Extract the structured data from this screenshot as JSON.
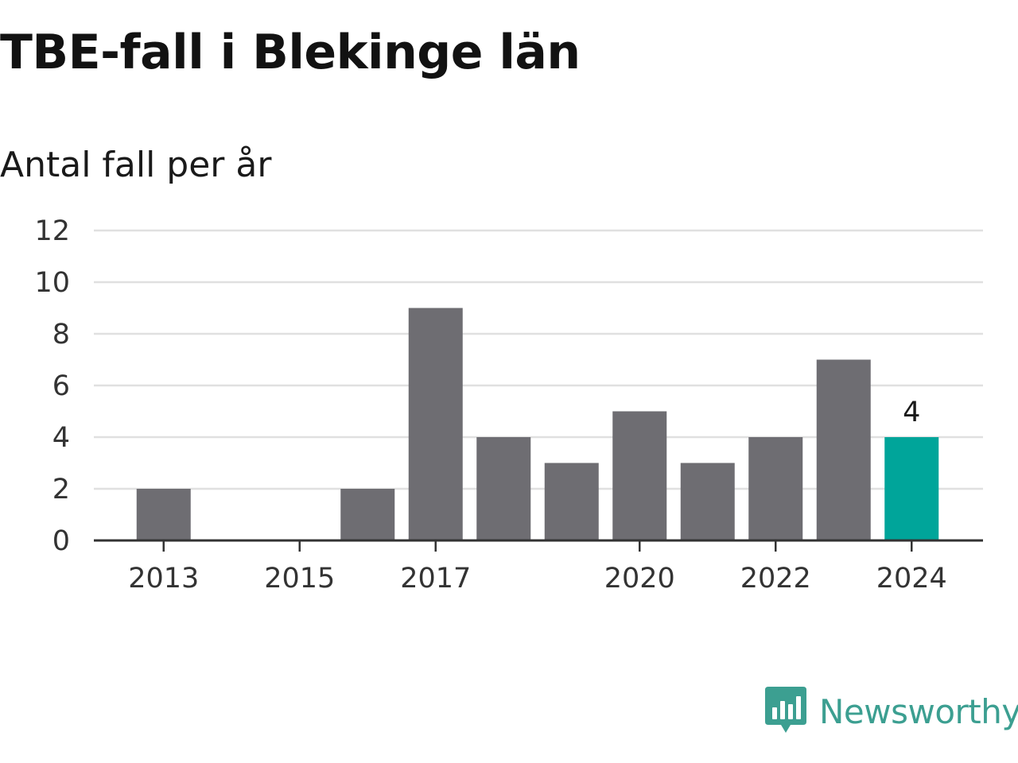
{
  "header": {
    "title": "TBE-fall i Blekinge län",
    "subtitle": "Antal fall per år"
  },
  "brand": {
    "name": "Newsworthy",
    "icon": "newsworthy-logo-icon",
    "color": "#3c9f91"
  },
  "chart_data": {
    "type": "bar",
    "categories": [
      "2013",
      "2014",
      "2015",
      "2016",
      "2017",
      "2018",
      "2019",
      "2020",
      "2021",
      "2022",
      "2023",
      "2024"
    ],
    "values": [
      2,
      0,
      0,
      2,
      9,
      4,
      3,
      5,
      3,
      4,
      7,
      4
    ],
    "x_tick_labels": [
      "2013",
      "2015",
      "2017",
      "2020",
      "2022",
      "2024"
    ],
    "y_ticks": [
      0,
      2,
      4,
      6,
      8,
      10,
      12
    ],
    "ylim": [
      0,
      12
    ],
    "grid": true,
    "bar_color": "#6e6d72",
    "highlight_color": "#00a59a",
    "highlight_category": "2024",
    "data_labels": [
      {
        "category": "2024",
        "text": "4"
      }
    ]
  }
}
